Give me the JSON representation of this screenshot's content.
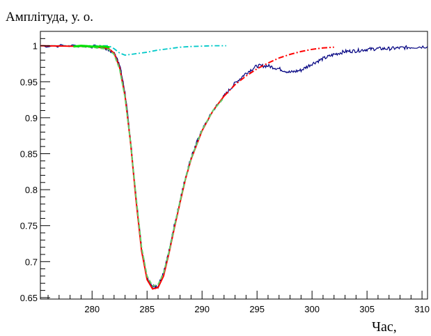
{
  "chart_data": {
    "type": "line",
    "title": "",
    "ylabel": "Амплітуда, у. о.",
    "xlabel": "Час,",
    "xlim": [
      275.3,
      310.5
    ],
    "ylim": [
      0.648,
      1.02
    ],
    "x_ticks": [
      280,
      285,
      290,
      295,
      300,
      305,
      310
    ],
    "x_tick_labels": [
      "280",
      "285",
      "290",
      "295",
      "300",
      "305",
      "310"
    ],
    "y_ticks": [
      0.65,
      0.7,
      0.75,
      0.8,
      0.85,
      0.9,
      0.95,
      1
    ],
    "y_tick_labels": [
      "0.65",
      "0.7",
      "0.75",
      "0.8",
      "0.85",
      "0.9",
      "0.95",
      "1"
    ],
    "grid": false,
    "legend": "none",
    "series": [
      {
        "color": "#000080",
        "style": "solid-noisy",
        "x": [
          275.3,
          279,
          281,
          282,
          282.5,
          283,
          283.5,
          284,
          284.5,
          285,
          285.5,
          286,
          286.5,
          287,
          287.5,
          288,
          288.5,
          289,
          289.5,
          290,
          291,
          292,
          293,
          294,
          295,
          296,
          297,
          298,
          299,
          300,
          301,
          302,
          303,
          304,
          305,
          306,
          307,
          308,
          309,
          310.5
        ],
        "y": [
          1.0,
          1.0,
          0.998,
          0.99,
          0.975,
          0.935,
          0.87,
          0.79,
          0.72,
          0.678,
          0.665,
          0.666,
          0.684,
          0.715,
          0.752,
          0.785,
          0.818,
          0.845,
          0.865,
          0.883,
          0.91,
          0.93,
          0.948,
          0.962,
          0.972,
          0.972,
          0.968,
          0.963,
          0.966,
          0.975,
          0.982,
          0.988,
          0.992,
          0.993,
          0.995,
          0.996,
          0.996,
          0.997,
          0.998,
          0.999
        ]
      },
      {
        "color": "#00c8c8",
        "style": "dash-dot",
        "x": [
          275.3,
          281.5,
          282,
          282.5,
          283,
          284,
          285,
          286,
          287,
          288,
          289,
          290,
          291,
          292.2
        ],
        "y": [
          1.0,
          1.0,
          0.996,
          0.99,
          0.987,
          0.989,
          0.991,
          0.994,
          0.996,
          0.998,
          0.999,
          0.9995,
          1.0,
          1.0
        ]
      },
      {
        "color": "#ff0000",
        "style": "solid-dashdot-tail",
        "solid_until_x": 292,
        "x": [
          275.3,
          280,
          281.5,
          282,
          282.5,
          283,
          283.5,
          284,
          284.5,
          285,
          285.5,
          286,
          286.5,
          287,
          287.5,
          288,
          288.5,
          289,
          290,
          291,
          292,
          293,
          294,
          295,
          296,
          297,
          298,
          299,
          300,
          301,
          302
        ],
        "y": [
          1.0,
          0.999,
          0.996,
          0.99,
          0.97,
          0.93,
          0.865,
          0.785,
          0.715,
          0.675,
          0.662,
          0.664,
          0.68,
          0.712,
          0.748,
          0.782,
          0.815,
          0.842,
          0.882,
          0.91,
          0.93,
          0.946,
          0.958,
          0.968,
          0.976,
          0.983,
          0.988,
          0.992,
          0.995,
          0.997,
          0.998
        ]
      },
      {
        "color": "#66cc66",
        "style": "dashed",
        "x": [
          278.5,
          280,
          281.5,
          282,
          282.5,
          283,
          283.5,
          284,
          284.5,
          285,
          285.5,
          286,
          286.5,
          287,
          287.5,
          288,
          288.5,
          289,
          290,
          291,
          292
        ],
        "y": [
          0.999,
          0.998,
          0.995,
          0.988,
          0.968,
          0.928,
          0.866,
          0.79,
          0.72,
          0.68,
          0.666,
          0.668,
          0.684,
          0.714,
          0.75,
          0.784,
          0.816,
          0.843,
          0.883,
          0.91,
          0.928
        ]
      },
      {
        "color": "#00e000",
        "style": "solid",
        "x": [
          278.3,
          279,
          280,
          281,
          281.6
        ],
        "y": [
          0.999,
          1.0,
          0.999,
          0.999,
          0.998
        ]
      }
    ]
  }
}
